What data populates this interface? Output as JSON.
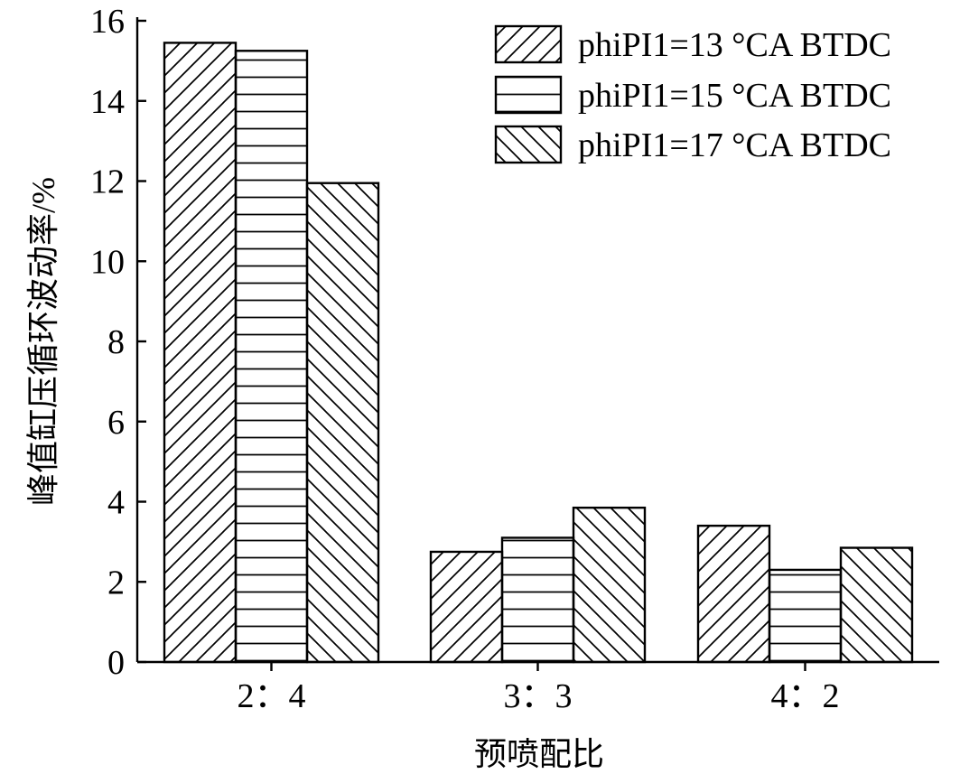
{
  "chart_data": {
    "type": "bar",
    "title": "",
    "xlabel": "预喷配比",
    "ylabel": "峰值缸压循环波动率/%",
    "categories": [
      "2：4",
      "3：3",
      "4：2"
    ],
    "series": [
      {
        "name": "phiPI1=13 °CA BTDC",
        "pattern": "diagonal-forward",
        "values": [
          15.45,
          2.75,
          3.4
        ]
      },
      {
        "name": "phiPI1=15 °CA BTDC",
        "pattern": "horizontal",
        "values": [
          15.25,
          3.1,
          2.3
        ]
      },
      {
        "name": "phiPI1=17 °CA BTDC",
        "pattern": "diagonal-backward",
        "values": [
          11.95,
          3.85,
          2.85
        ]
      }
    ],
    "ylim": [
      0,
      16
    ],
    "yticks": [
      0,
      2,
      4,
      6,
      8,
      10,
      12,
      14,
      16
    ],
    "grid": false,
    "legend_position": "top-right"
  }
}
